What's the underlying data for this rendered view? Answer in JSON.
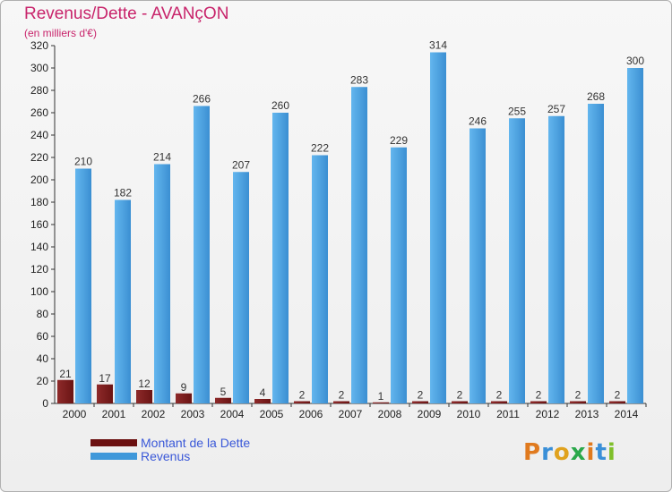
{
  "header": {
    "title": "Revenus/Dette - AVANçON",
    "subtitle": "(en milliers d'€)"
  },
  "chart_data": {
    "type": "bar",
    "title": "Revenus/Dette - AVANçON",
    "ylabel": "(en milliers d'€)",
    "xlabel": "",
    "ylim": [
      0,
      320
    ],
    "ytick_step": 20,
    "grid": false,
    "legend_position": "bottom-left",
    "categories": [
      "2000",
      "2001",
      "2002",
      "2003",
      "2004",
      "2005",
      "2006",
      "2007",
      "2008",
      "2009",
      "2010",
      "2011",
      "2012",
      "2013",
      "2014"
    ],
    "series": [
      {
        "name": "Montant de la Dette",
        "color": "#7a1f1f",
        "values": [
          21,
          17,
          12,
          9,
          5,
          4,
          2,
          2,
          1,
          2,
          2,
          2,
          2,
          2,
          2
        ]
      },
      {
        "name": "Revenus",
        "color": "#3f98da",
        "values": [
          210,
          182,
          214,
          266,
          207,
          260,
          222,
          283,
          229,
          314,
          246,
          255,
          257,
          268,
          300
        ]
      }
    ]
  },
  "legend": {
    "items": [
      {
        "label": "Montant de la Dette",
        "color": "#6b1010"
      },
      {
        "label": "Revenus",
        "color": "#3f98da"
      }
    ]
  },
  "brand": {
    "letters": [
      "P",
      "r",
      "o",
      "x",
      "i",
      "t",
      "i"
    ],
    "colors": [
      "#e07a1e",
      "#3a8fd8",
      "#e0a21e",
      "#2aa84a",
      "#e07a1e",
      "#3a8fd8",
      "#7fbf2a"
    ]
  }
}
